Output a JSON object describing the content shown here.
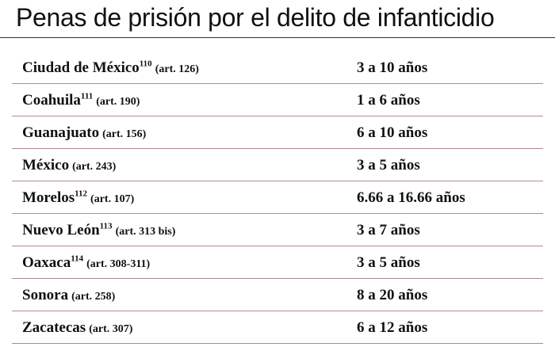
{
  "title": "Penas de prisión por el delito de infanticidio",
  "rows": [
    {
      "state": "Ciudad de México",
      "note": "110",
      "article": "(art. 126)",
      "penalty": "3 a 10 años"
    },
    {
      "state": "Coahuila",
      "note": "111",
      "article": "(art. 190)",
      "penalty": "1 a 6 años"
    },
    {
      "state": "Guanajuato",
      "note": "",
      "article": "(art. 156)",
      "penalty": "6 a 10 años"
    },
    {
      "state": "México",
      "note": "",
      "article": "(art. 243)",
      "penalty": "3 a 5 años"
    },
    {
      "state": "Morelos",
      "note": "112",
      "article": "(art. 107)",
      "penalty": "6.66 a 16.66 años"
    },
    {
      "state": "Nuevo León",
      "note": "113",
      "article": "(art. 313 bis)",
      "penalty": "3 a 7 años"
    },
    {
      "state": "Oaxaca",
      "note": "114",
      "article": "(art. 308-311)",
      "penalty": "3 a 5 años"
    },
    {
      "state": "Sonora",
      "note": "",
      "article": "(art. 258)",
      "penalty": "8 a 20 años"
    },
    {
      "state": "Zacatecas",
      "note": "",
      "article": "(art. 307)",
      "penalty": "6 a 12 años"
    }
  ],
  "colors": {
    "text": "#111111",
    "row_rule": "#b0879a",
    "title_rule": "#333333"
  }
}
